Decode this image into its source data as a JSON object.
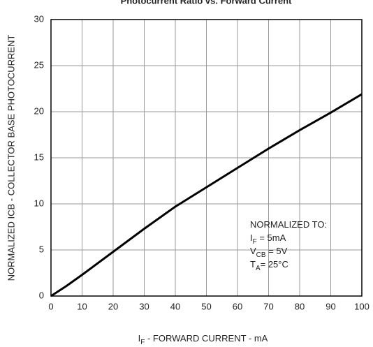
{
  "chart_data": {
    "type": "line",
    "title": "Photocurrent Ratio vs. Forward Current",
    "y_label": "NORMALIZED ICB - COLLECTOR BASE PHOTOCURRENT",
    "x_label": {
      "main": "I",
      "sub": "F",
      "rest": " - FORWARD CURRENT - mA"
    },
    "x": [
      0,
      5,
      10,
      20,
      30,
      40,
      50,
      60,
      70,
      80,
      90,
      100
    ],
    "values": [
      0,
      1.1,
      2.3,
      4.8,
      7.3,
      9.7,
      11.8,
      13.9,
      16,
      18,
      19.9,
      21.9
    ],
    "color": "#000000",
    "xlim": [
      0,
      100
    ],
    "xticks": [
      0,
      10,
      20,
      30,
      40,
      50,
      60,
      70,
      80,
      90,
      100
    ],
    "ylim": [
      0,
      30
    ],
    "yticks": [
      0,
      5,
      10,
      15,
      20,
      25,
      30
    ],
    "grid": true,
    "annotation": [
      {
        "main": "NORMALIZED TO:"
      },
      {
        "main": "I",
        "sub": "F",
        "rest": " = 5mA"
      },
      {
        "main": "V",
        "sub": "CB",
        "rest": " = 5V"
      },
      {
        "main": "T",
        "sub": "A",
        "rest": "= 25°C"
      }
    ]
  }
}
